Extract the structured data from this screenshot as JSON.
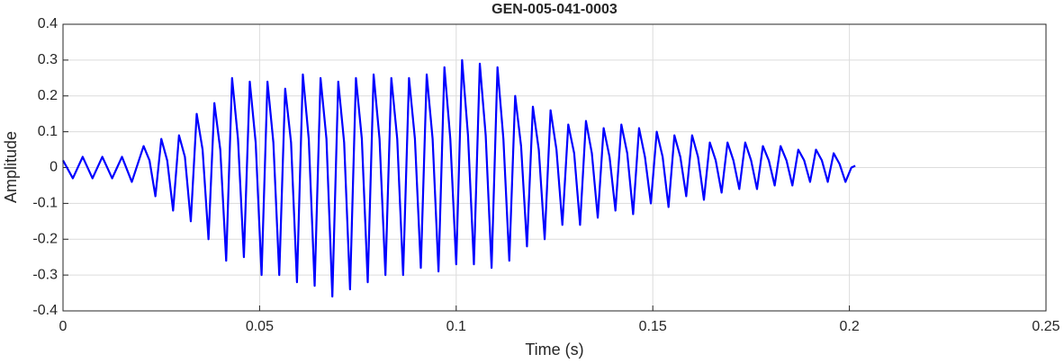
{
  "chart_data": {
    "type": "line",
    "title": "GEN-005-041-0003",
    "x_label": "Time (s)",
    "y_label": "Amplitude",
    "xlim": [
      0,
      0.25
    ],
    "xticks": [
      0,
      0.05,
      0.1,
      0.15,
      0.2,
      0.25
    ],
    "ylim": [
      -0.4,
      0.4
    ],
    "yticks": [
      -0.4,
      -0.3,
      -0.2,
      -0.1,
      0,
      0.1,
      0.2,
      0.3,
      0.4
    ],
    "grid": true,
    "x": [
      0,
      0.0025,
      0.005,
      0.0075,
      0.01,
      0.0125,
      0.015,
      0.0175,
      0.0205,
      0.022,
      0.0235,
      0.025,
      0.0265,
      0.028,
      0.0295,
      0.031,
      0.0325,
      0.034,
      0.0355,
      0.037,
      0.0385,
      0.04,
      0.0415,
      0.043,
      0.0445,
      0.046,
      0.0475,
      0.049,
      0.0505,
      0.052,
      0.0535,
      0.055,
      0.0565,
      0.058,
      0.0595,
      0.061,
      0.0625,
      0.064,
      0.0655,
      0.067,
      0.0685,
      0.07,
      0.0715,
      0.073,
      0.0745,
      0.076,
      0.0775,
      0.079,
      0.0805,
      0.082,
      0.0835,
      0.085,
      0.0865,
      0.088,
      0.0895,
      0.091,
      0.0925,
      0.094,
      0.0955,
      0.097,
      0.0985,
      0.1,
      0.1015,
      0.103,
      0.1045,
      0.106,
      0.1075,
      0.109,
      0.1105,
      0.112,
      0.1135,
      0.115,
      0.1165,
      0.118,
      0.1195,
      0.121,
      0.1225,
      0.124,
      0.1255,
      0.127,
      0.1285,
      0.13,
      0.1315,
      0.133,
      0.1345,
      0.136,
      0.1375,
      0.139,
      0.1405,
      0.142,
      0.1435,
      0.145,
      0.1465,
      0.148,
      0.1495,
      0.151,
      0.1525,
      0.154,
      0.1555,
      0.157,
      0.1585,
      0.16,
      0.1615,
      0.163,
      0.1645,
      0.166,
      0.1675,
      0.169,
      0.1705,
      0.172,
      0.1735,
      0.175,
      0.1765,
      0.178,
      0.1795,
      0.181,
      0.1825,
      0.184,
      0.1855,
      0.187,
      0.1885,
      0.19,
      0.1915,
      0.193,
      0.1945,
      0.196,
      0.1975,
      0.199,
      0.2005,
      0.2015
    ],
    "series": [
      {
        "color": "#0000ff",
        "values": [
          0.02,
          -0.03,
          0.03,
          -0.03,
          0.03,
          -0.03,
          0.03,
          -0.04,
          0.06,
          0.02,
          -0.08,
          0.08,
          0.02,
          -0.12,
          0.09,
          0.03,
          -0.15,
          0.15,
          0.05,
          -0.2,
          0.18,
          0.05,
          -0.26,
          0.25,
          0.08,
          -0.25,
          0.24,
          0.07,
          -0.3,
          0.24,
          0.07,
          -0.3,
          0.22,
          0.07,
          -0.32,
          0.26,
          0.08,
          -0.33,
          0.25,
          0.08,
          -0.36,
          0.24,
          0.07,
          -0.34,
          0.25,
          0.08,
          -0.32,
          0.26,
          0.08,
          -0.3,
          0.25,
          0.08,
          -0.3,
          0.25,
          0.08,
          -0.28,
          0.26,
          0.08,
          -0.29,
          0.28,
          0.08,
          -0.27,
          0.3,
          0.09,
          -0.27,
          0.29,
          0.09,
          -0.28,
          0.28,
          0.08,
          -0.26,
          0.2,
          0.06,
          -0.22,
          0.17,
          0.05,
          -0.2,
          0.16,
          0.05,
          -0.16,
          0.12,
          0.04,
          -0.16,
          0.13,
          0.04,
          -0.14,
          0.11,
          0.03,
          -0.12,
          0.12,
          0.04,
          -0.13,
          0.11,
          0.03,
          -0.1,
          0.1,
          0.03,
          -0.11,
          0.09,
          0.03,
          -0.08,
          0.09,
          0.03,
          -0.09,
          0.07,
          0.02,
          -0.07,
          0.07,
          0.02,
          -0.06,
          0.07,
          0.02,
          -0.06,
          0.06,
          0.02,
          -0.05,
          0.06,
          0.02,
          -0.05,
          0.05,
          0.02,
          -0.04,
          0.05,
          0.02,
          -0.04,
          0.04,
          0.01,
          -0.04,
          0,
          0.005
        ]
      }
    ]
  }
}
